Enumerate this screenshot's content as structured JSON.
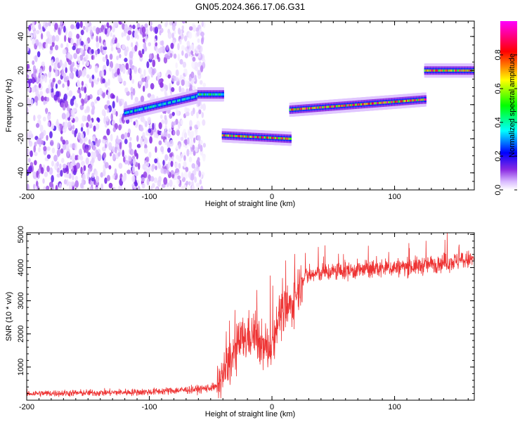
{
  "title": "GN05.2024.366.17.06.G31",
  "chart_data": [
    {
      "type": "heatmap",
      "xlabel": "Height of straight line (km)",
      "ylabel": "Frequency (Hz)",
      "xlim": [
        -200,
        165
      ],
      "ylim": [
        -50,
        49
      ],
      "xticks": [
        -200,
        -100,
        0,
        100
      ],
      "yticks": [
        -40,
        -20,
        0,
        20,
        40
      ],
      "colorbar": {
        "label": "Normalized spectral amplitude",
        "range": [
          0,
          1
        ],
        "ticks": [
          0.0,
          0.2,
          0.4,
          0.6,
          0.8
        ],
        "colors": [
          "#ffffff",
          "#d8b8ff",
          "#8a2be2",
          "#0000ff",
          "#00ffff",
          "#00ff00",
          "#ffff00",
          "#ff0000",
          "#ff00ff"
        ]
      },
      "segments": [
        {
          "x": [
            -120,
            -60
          ],
          "freq": [
            -5,
            5
          ],
          "amplitude": 0.4
        },
        {
          "x": [
            -60,
            -40
          ],
          "freq": [
            6,
            6
          ],
          "amplitude": 0.5
        },
        {
          "x": [
            -40,
            15
          ],
          "freq": [
            -18,
            -20
          ],
          "amplitude": 0.8
        },
        {
          "x": [
            15,
            125
          ],
          "freq": [
            -3,
            3
          ],
          "amplitude": 0.85
        },
        {
          "x": [
            125,
            165
          ],
          "freq": [
            20,
            20
          ],
          "amplitude": 0.8
        }
      ],
      "noise_region": {
        "x": [
          -200,
          -55
        ],
        "freq": [
          -50,
          49
        ]
      }
    },
    {
      "type": "line",
      "xlabel": "Height of straight line (km)",
      "ylabel": "SNR (10 * v/v)",
      "xlim": [
        -200,
        165
      ],
      "ylim": [
        0,
        5050
      ],
      "xticks": [
        -200,
        -100,
        0,
        100
      ],
      "yticks": [
        1000,
        2000,
        3000,
        4000,
        5000
      ],
      "color": "#ee3333",
      "x": [
        -200,
        -150,
        -100,
        -60,
        -45,
        -35,
        -25,
        -15,
        -5,
        0,
        5,
        15,
        25,
        40,
        60,
        80,
        100,
        120,
        140,
        165
      ],
      "y": [
        200,
        220,
        250,
        330,
        400,
        1100,
        1800,
        2000,
        1500,
        1700,
        2500,
        2800,
        3700,
        3850,
        3900,
        3950,
        4000,
        4050,
        4150,
        4250
      ]
    }
  ]
}
